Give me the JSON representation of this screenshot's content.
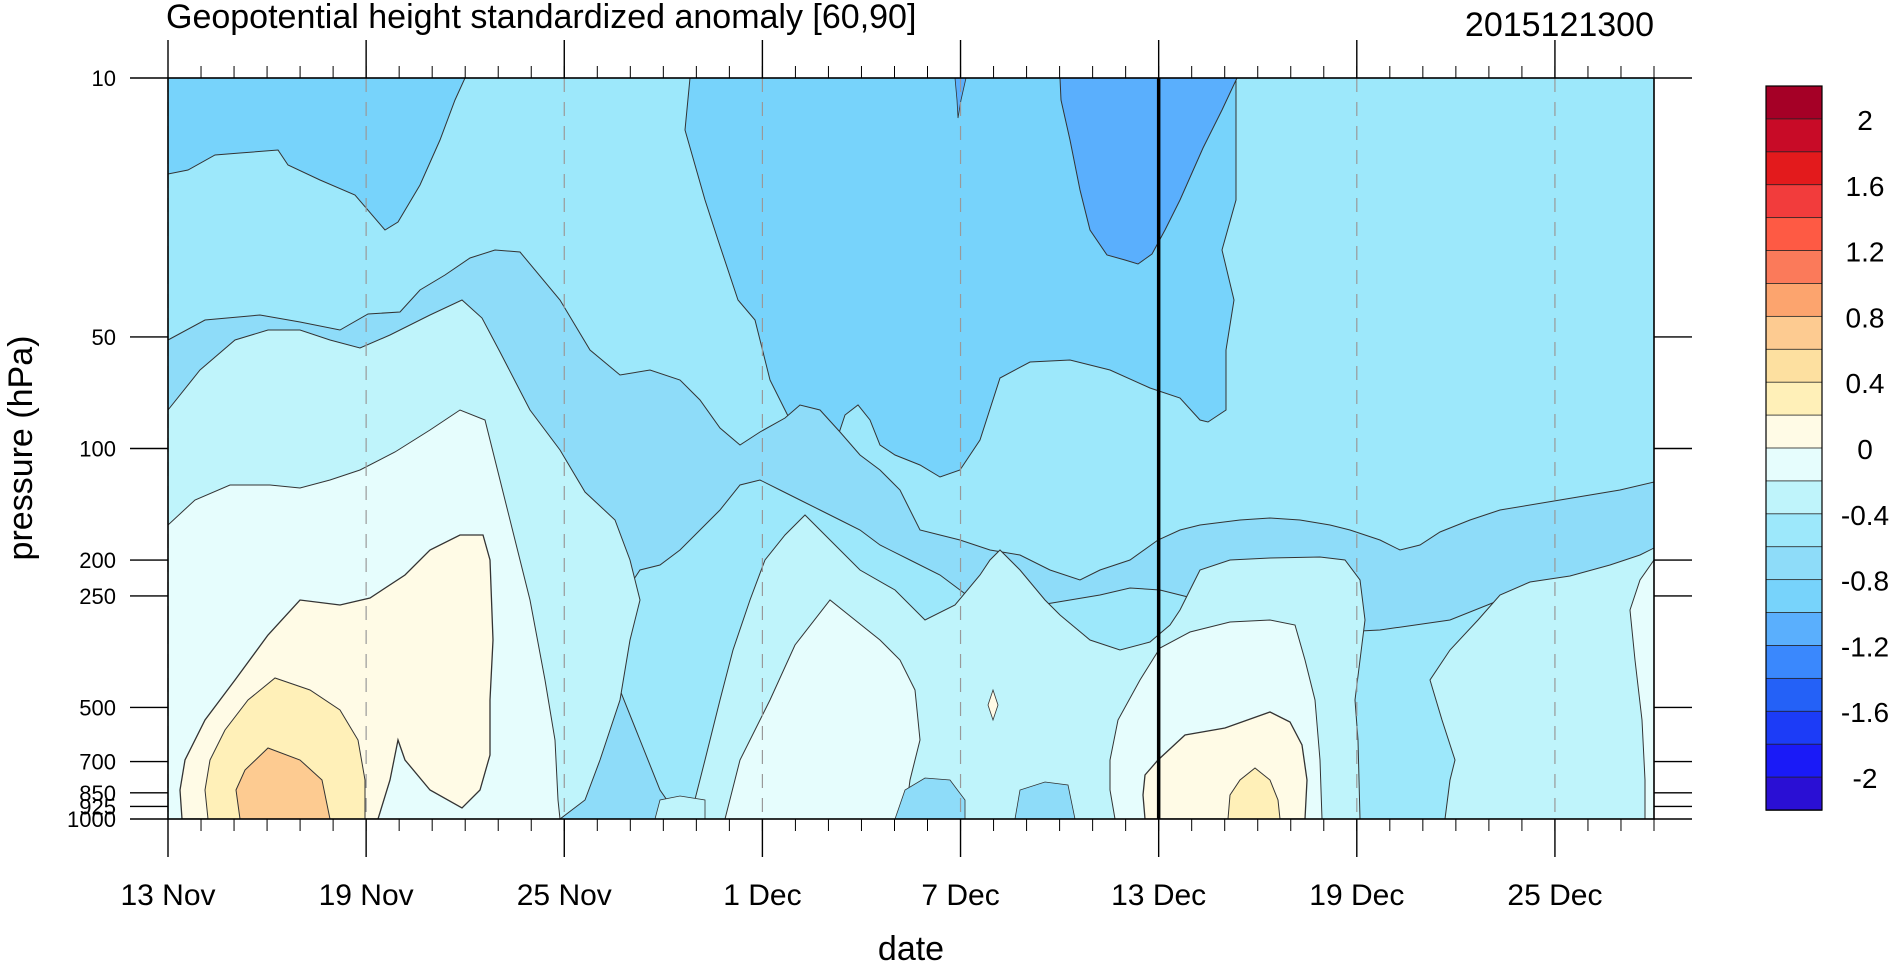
{
  "chart_data": {
    "type": "heatmap",
    "subtype": "filled-contour",
    "title": "Geopotential height standardized anomaly [60,90]",
    "timestamp": "2015121300",
    "xlabel": "date",
    "ylabel": "pressure (hPa)",
    "x_ticks": [
      "13 Nov",
      "19 Nov",
      "25 Nov",
      "1 Dec",
      "7 Dec",
      "13 Dec",
      "19 Dec",
      "25 Dec"
    ],
    "x_range_days": [
      0,
      45
    ],
    "y_ticks": [
      10,
      50,
      100,
      200,
      250,
      500,
      700,
      850,
      925,
      1000
    ],
    "y_range": [
      10,
      1000
    ],
    "y_scale": "log",
    "y_inverted": true,
    "minor_x_tick_step_days": 1,
    "dashed_gridlines_at_x_ticks": true,
    "current_date_line": "13 Dec",
    "colorbar": {
      "labels": [
        "2",
        "1.6",
        "1.2",
        "0.8",
        "0.4",
        "0",
        "-0.4",
        "-0.8",
        "-1.2",
        "-1.6",
        "-2"
      ],
      "colors": [
        "#a50026",
        "#c80b27",
        "#e31a1c",
        "#f23c3c",
        "#fe5a44",
        "#fb7a5a",
        "#fca46e",
        "#fdcb91",
        "#fde0a0",
        "#fff0b8",
        "#fffbe6",
        "#e6fdfd",
        "#bff4fb",
        "#9de8fb",
        "#8edcf9",
        "#77d3fb",
        "#5aaffd",
        "#3a88fd",
        "#2461f7",
        "#1c3cf7",
        "#1a1af7",
        "#2a0fd4"
      ]
    },
    "fields": [
      {
        "level": "-1.0",
        "color": "#5aaffd",
        "region": "upper stratosphere around 9–13 Dec"
      },
      {
        "level": "-0.8",
        "color": "#77d3fb",
        "region": "stratosphere 13–20 Nov and 4–19 Dec"
      },
      {
        "level": "-0.6",
        "color": "#9de8fb",
        "region": "background and lower-troposphere tongues"
      },
      {
        "level": "-0.4",
        "color": "#bff4fb",
        "region": "mid-levels"
      },
      {
        "level": "-0.2",
        "color": "#e6fdfd",
        "region": "troposphere pockets"
      },
      {
        "level": "0.2",
        "color": "#fffbe6",
        "region": "lower troposphere 13–22 Nov and 13–18 Dec"
      },
      {
        "level": "0.4",
        "color": "#fff0b8",
        "region": "near-surface 14–19 Nov"
      },
      {
        "level": "0.6",
        "color": "#fdcb91",
        "region": "surface core ~16 Nov and ~16 Dec"
      }
    ]
  }
}
